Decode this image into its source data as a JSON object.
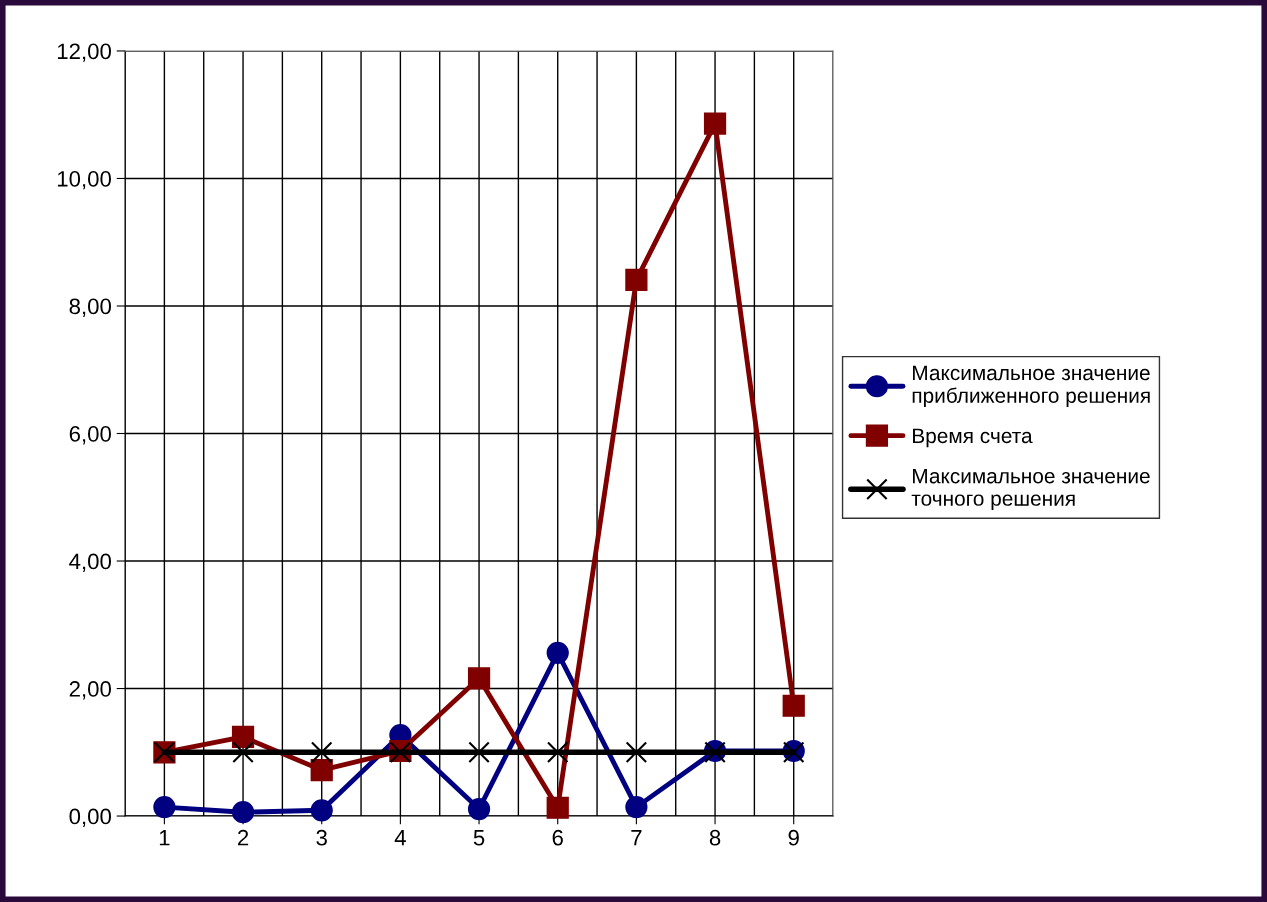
{
  "chart_data": {
    "type": "line",
    "categories": [
      "1",
      "2",
      "3",
      "4",
      "5",
      "6",
      "7",
      "8",
      "9"
    ],
    "series": [
      {
        "name": "Максимальное значение\nприближенного решения",
        "color": "#000080",
        "marker": "circle",
        "values": [
          0.14,
          0.06,
          0.09,
          1.27,
          0.11,
          2.56,
          0.14,
          1.02,
          1.02
        ]
      },
      {
        "name": "Время счета",
        "color": "#800000",
        "marker": "square",
        "values": [
          1.0,
          1.24,
          0.72,
          1.02,
          2.16,
          0.13,
          8.41,
          10.86,
          1.73
        ]
      },
      {
        "name": "Максимальное значение\nточного решения",
        "color": "#000000",
        "marker": "cross",
        "values": [
          1,
          1,
          1,
          1,
          1,
          1,
          1,
          1,
          1
        ]
      }
    ],
    "ylim": [
      0,
      12
    ],
    "yticks": [
      {
        "value": 0,
        "label": "0,00"
      },
      {
        "value": 2,
        "label": "2,00"
      },
      {
        "value": 4,
        "label": "4,00"
      },
      {
        "value": 6,
        "label": "6,00"
      },
      {
        "value": 8,
        "label": "8,00"
      },
      {
        "value": 10,
        "label": "10,00"
      },
      {
        "value": 12,
        "label": "12,00"
      }
    ],
    "grid": true,
    "legend": "right",
    "line_style": "solid"
  }
}
